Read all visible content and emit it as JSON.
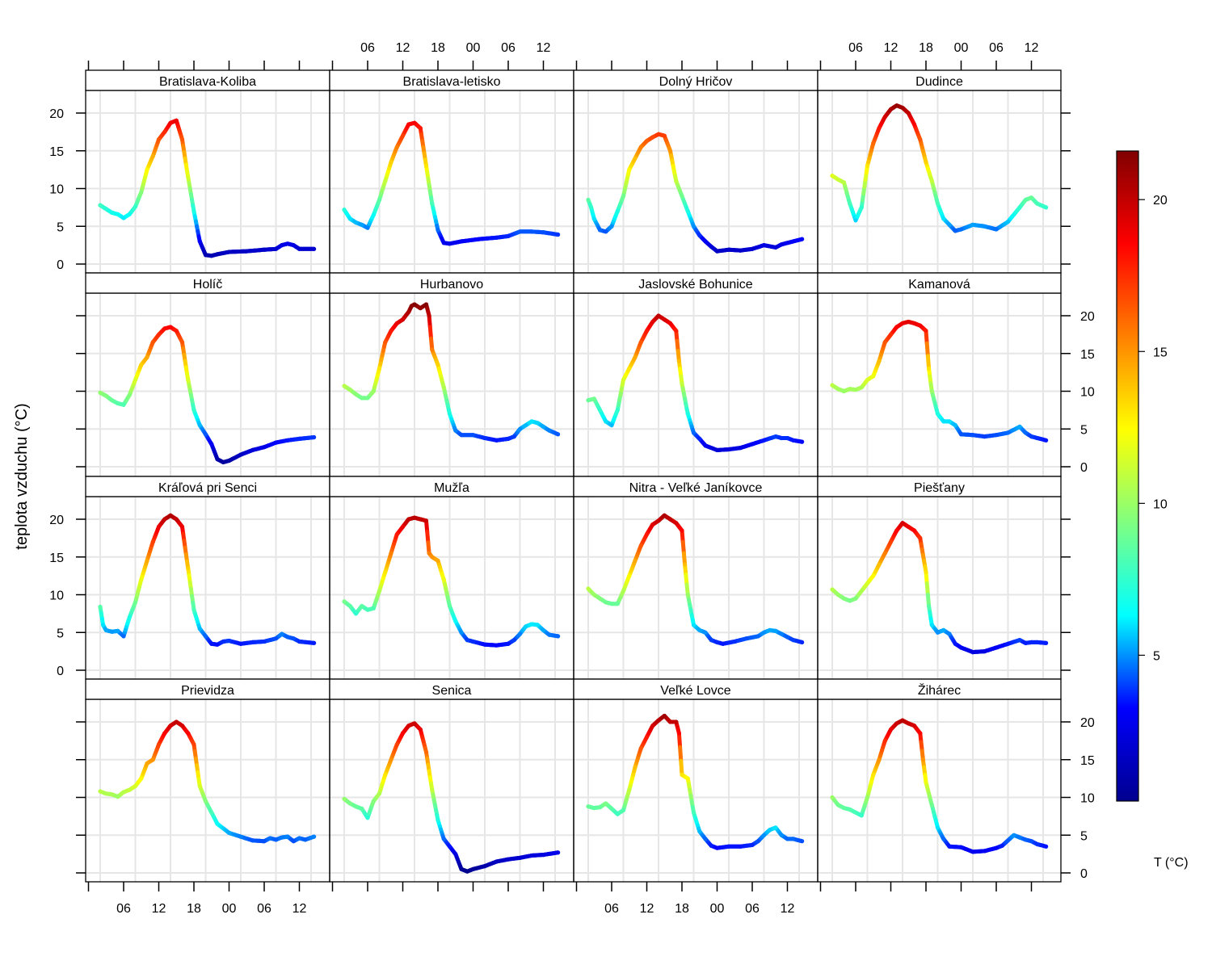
{
  "chart_data": {
    "type": "line",
    "subtype": "faceted line plot colored by value (4x4 panels)",
    "title": "",
    "ylabel": "teplota vzduchu (°C)",
    "xlabel": "",
    "x_unit": "hours from 00:00 of day 1",
    "x_tick_labels": [
      "06",
      "12",
      "18",
      "00",
      "06",
      "12"
    ],
    "x_tick_hours": [
      0,
      6,
      12,
      18,
      24,
      30,
      36
    ],
    "y_ticks": [
      0,
      5,
      10,
      15,
      20
    ],
    "ylim": [
      -1.5,
      23.5
    ],
    "grid": true,
    "layout": {
      "columns": 4,
      "rows": 4
    },
    "colorbar": {
      "title": "T (°C)",
      "ticks": [
        5,
        10,
        15,
        20
      ],
      "range": [
        0.2,
        21.6
      ],
      "colormap": "jet",
      "stops": [
        "#00008F",
        "#0000FF",
        "#00FFFF",
        "#80FF80",
        "#FFFF00",
        "#FF8000",
        "#FF0000",
        "#800000"
      ]
    },
    "panels": [
      {
        "name": "Bratislava-Koliba",
        "x": [
          2,
          3,
          4,
          5,
          6,
          7,
          8,
          9,
          10,
          11,
          12,
          13,
          14,
          15,
          16,
          17,
          18,
          19,
          20,
          21,
          22,
          24,
          27,
          30,
          32,
          33,
          34,
          35,
          36,
          38.5
        ],
        "y": [
          7.8,
          7.3,
          6.8,
          6.6,
          6.1,
          6.6,
          7.6,
          9.5,
          12.5,
          14.3,
          16.5,
          17.5,
          18.7,
          19.0,
          16.5,
          11.5,
          7.0,
          3.0,
          1.2,
          1.1,
          1.3,
          1.6,
          1.7,
          1.9,
          2.0,
          2.5,
          2.7,
          2.5,
          2.0,
          2.0
        ]
      },
      {
        "name": "Bratislava-letisko",
        "x": [
          2,
          3,
          4,
          5,
          6,
          7,
          8,
          9,
          10,
          11,
          12,
          13,
          14,
          15,
          16,
          17,
          18,
          19,
          20,
          22,
          25,
          28,
          30,
          32,
          34,
          36,
          38.5
        ],
        "y": [
          7.2,
          6.0,
          5.5,
          5.2,
          4.8,
          6.5,
          8.5,
          11.0,
          13.5,
          15.5,
          17.0,
          18.5,
          18.7,
          18.0,
          13.0,
          8.0,
          4.5,
          2.8,
          2.7,
          3.0,
          3.3,
          3.5,
          3.7,
          4.3,
          4.3,
          4.2,
          3.9
        ]
      },
      {
        "name": "Dolný Hričov",
        "x": [
          2,
          2.5,
          3,
          4,
          5,
          6,
          7,
          8,
          9,
          10,
          11,
          12,
          13,
          14,
          15,
          16,
          17,
          18,
          19,
          20,
          21,
          22,
          23,
          24,
          26,
          28,
          30,
          32,
          34,
          35,
          36,
          38.5
        ],
        "y": [
          8.5,
          7.5,
          6.0,
          4.5,
          4.3,
          5.0,
          7.0,
          9.0,
          12.5,
          14.0,
          15.5,
          16.3,
          16.8,
          17.2,
          17.0,
          15.0,
          11.0,
          9.0,
          7.0,
          5.0,
          3.8,
          3.0,
          2.3,
          1.7,
          1.9,
          1.8,
          2.0,
          2.5,
          2.2,
          2.6,
          2.8,
          3.3
        ]
      },
      {
        "name": "Dudince",
        "x": [
          2,
          3,
          4,
          5,
          6,
          7,
          8,
          9,
          10,
          11,
          12,
          13,
          14,
          15,
          16,
          17,
          18,
          19,
          20,
          21,
          22,
          23,
          24,
          26,
          28,
          30,
          32,
          34,
          35,
          36,
          37,
          38.5
        ],
        "y": [
          11.7,
          11.2,
          10.8,
          8.0,
          5.8,
          7.5,
          13.0,
          16.0,
          18.0,
          19.5,
          20.5,
          21.0,
          20.7,
          20.0,
          18.5,
          16.5,
          13.5,
          11.0,
          8.0,
          6.0,
          5.2,
          4.4,
          4.6,
          5.2,
          5.0,
          4.6,
          5.6,
          7.5,
          8.5,
          8.8,
          8.0,
          7.5
        ]
      },
      {
        "name": "Holíč",
        "x": [
          2,
          3,
          4,
          5,
          6,
          7,
          8,
          9,
          10,
          11,
          12,
          13,
          14,
          15,
          16,
          17,
          18,
          19,
          20,
          21,
          22,
          23,
          24,
          26,
          28,
          30,
          32,
          34,
          36,
          38.5
        ],
        "y": [
          9.8,
          9.4,
          8.8,
          8.4,
          8.2,
          9.5,
          11.5,
          13.5,
          14.5,
          16.5,
          17.5,
          18.3,
          18.5,
          18.0,
          16.5,
          11.5,
          7.5,
          5.5,
          4.3,
          3.0,
          1.0,
          0.6,
          0.8,
          1.6,
          2.2,
          2.6,
          3.2,
          3.5,
          3.7,
          3.9
        ]
      },
      {
        "name": "Hurbanovo",
        "x": [
          2,
          3,
          4,
          5,
          6,
          7,
          8,
          9,
          10,
          11,
          12,
          13,
          13.5,
          14,
          15,
          16,
          16.5,
          17,
          18,
          19,
          20,
          21,
          22,
          24,
          26,
          28,
          30,
          31,
          32,
          33,
          34,
          35,
          36,
          37,
          38.5
        ],
        "y": [
          10.7,
          10.2,
          9.6,
          9.1,
          9.1,
          10.0,
          13.0,
          16.5,
          18.0,
          19.0,
          19.5,
          20.5,
          21.3,
          21.5,
          21.0,
          21.5,
          20.0,
          15.5,
          13.5,
          10.5,
          7.0,
          4.8,
          4.2,
          4.2,
          3.8,
          3.5,
          3.7,
          4.0,
          5.0,
          5.5,
          6.0,
          5.8,
          5.3,
          4.8,
          4.3
        ]
      },
      {
        "name": "Jaslovské Bohunice",
        "x": [
          2,
          3,
          4,
          5,
          6,
          7,
          8,
          9,
          10,
          11,
          12,
          13,
          14,
          15,
          16,
          17,
          17.5,
          18,
          19,
          20,
          21,
          22,
          24,
          26,
          28,
          30,
          32,
          34,
          35,
          36,
          37,
          38.5
        ],
        "y": [
          8.8,
          9.0,
          7.5,
          6.0,
          5.5,
          7.5,
          11.5,
          13.0,
          14.5,
          16.5,
          18.0,
          19.2,
          20.0,
          19.5,
          19.0,
          18.0,
          14.0,
          11.0,
          7.0,
          4.5,
          3.7,
          2.8,
          2.2,
          2.3,
          2.5,
          3.0,
          3.5,
          4.0,
          3.8,
          3.8,
          3.5,
          3.3
        ]
      },
      {
        "name": "Kamanová",
        "x": [
          2,
          3,
          4,
          5,
          6,
          7,
          8,
          9,
          10,
          11,
          12,
          13,
          14,
          15,
          16,
          17,
          18,
          18.5,
          19,
          20,
          21,
          22,
          23,
          24,
          26,
          28,
          30,
          32,
          34,
          35,
          36,
          37,
          38.5
        ],
        "y": [
          10.8,
          10.3,
          10.0,
          10.3,
          10.2,
          10.5,
          11.5,
          12.0,
          14.0,
          16.5,
          17.5,
          18.5,
          19.0,
          19.2,
          19.0,
          18.7,
          18.0,
          13.0,
          10.0,
          7.0,
          6.0,
          6.0,
          5.5,
          4.3,
          4.2,
          4.0,
          4.2,
          4.5,
          5.3,
          4.5,
          4.0,
          3.8,
          3.5
        ]
      },
      {
        "name": "Kráľová pri Senci",
        "x": [
          2,
          2.5,
          3,
          4,
          5,
          6,
          7,
          8,
          9,
          10,
          11,
          12,
          13,
          14,
          15,
          16,
          17,
          18,
          19,
          20,
          21,
          22,
          23,
          24,
          26,
          28,
          30,
          32,
          33,
          34,
          35,
          36,
          38.5
        ],
        "y": [
          8.4,
          6.0,
          5.3,
          5.1,
          5.2,
          4.5,
          7.0,
          9.0,
          12.0,
          14.5,
          17.0,
          19.0,
          20.0,
          20.5,
          20.0,
          19.0,
          13.5,
          8.0,
          5.5,
          4.5,
          3.5,
          3.4,
          3.8,
          3.9,
          3.5,
          3.7,
          3.8,
          4.2,
          4.8,
          4.4,
          4.2,
          3.8,
          3.6
        ]
      },
      {
        "name": "Mužľa",
        "x": [
          2,
          3,
          4,
          5,
          6,
          7,
          8,
          9,
          10,
          11,
          12,
          13,
          14,
          15,
          16,
          16.5,
          17,
          18,
          19,
          20,
          21,
          22,
          23,
          24,
          26,
          28,
          30,
          31,
          32,
          33,
          34,
          35,
          36,
          37,
          38.5
        ],
        "y": [
          9.1,
          8.5,
          7.5,
          8.5,
          8.0,
          8.2,
          10.5,
          13.0,
          15.5,
          18.0,
          19.0,
          20.0,
          20.2,
          20.0,
          19.8,
          15.5,
          15.0,
          14.5,
          12.0,
          8.5,
          6.5,
          5.0,
          4.0,
          3.8,
          3.4,
          3.3,
          3.5,
          4.0,
          4.8,
          5.8,
          6.1,
          6.0,
          5.3,
          4.7,
          4.5
        ]
      },
      {
        "name": "Nitra - Veľké Janíkovce",
        "x": [
          2,
          3,
          4,
          5,
          6,
          7,
          8,
          9,
          10,
          11,
          12,
          13,
          14,
          15,
          16,
          17,
          18,
          18.5,
          19,
          20,
          21,
          22,
          23,
          24,
          25,
          27,
          29,
          31,
          32,
          33,
          34,
          35,
          36,
          37,
          38.5
        ],
        "y": [
          10.8,
          10.0,
          9.5,
          9.0,
          8.8,
          8.8,
          10.5,
          12.5,
          14.5,
          16.5,
          18.0,
          19.3,
          19.8,
          20.5,
          20.0,
          19.5,
          18.5,
          14.0,
          10.0,
          6.0,
          5.3,
          5.0,
          4.0,
          3.7,
          3.5,
          3.8,
          4.2,
          4.5,
          5.0,
          5.3,
          5.2,
          4.8,
          4.4,
          4.0,
          3.7
        ]
      },
      {
        "name": "Piešťany",
        "x": [
          2,
          3,
          4,
          5,
          6,
          7,
          8,
          9,
          10,
          11,
          12,
          13,
          14,
          15,
          16,
          17,
          18,
          18.5,
          19,
          20,
          21,
          22,
          23,
          24,
          26,
          28,
          30,
          32,
          34,
          35,
          36,
          37,
          38.5
        ],
        "y": [
          10.7,
          10.0,
          9.5,
          9.2,
          9.5,
          10.5,
          11.5,
          12.5,
          14.0,
          15.5,
          17.0,
          18.5,
          19.5,
          19.0,
          18.5,
          17.5,
          13.0,
          8.5,
          6.0,
          5.0,
          5.3,
          4.8,
          3.5,
          3.0,
          2.4,
          2.5,
          3.0,
          3.5,
          4.0,
          3.6,
          3.7,
          3.7,
          3.6
        ]
      },
      {
        "name": "Prievidza",
        "x": [
          2,
          3,
          4,
          5,
          6,
          7,
          8,
          9,
          10,
          11,
          12,
          13,
          14,
          15,
          16,
          17,
          18,
          19,
          20,
          21,
          22,
          24,
          26,
          28,
          30,
          31,
          32,
          33,
          34,
          35,
          36,
          37,
          38.5
        ],
        "y": [
          10.8,
          10.5,
          10.4,
          10.1,
          10.7,
          11.0,
          11.5,
          12.5,
          14.5,
          15.0,
          17.0,
          18.5,
          19.5,
          20.0,
          19.5,
          18.5,
          17.0,
          11.5,
          9.5,
          8.0,
          6.5,
          5.3,
          4.8,
          4.3,
          4.2,
          4.6,
          4.4,
          4.7,
          4.8,
          4.2,
          4.6,
          4.4,
          4.8
        ]
      },
      {
        "name": "Senica",
        "x": [
          2,
          3,
          4,
          5,
          6,
          7,
          8,
          9,
          10,
          11,
          12,
          13,
          14,
          15,
          16,
          17,
          18,
          19,
          20,
          21,
          22,
          23,
          24,
          26,
          28,
          30,
          32,
          34,
          36,
          38.5
        ],
        "y": [
          9.8,
          9.2,
          8.8,
          8.5,
          7.3,
          9.5,
          10.5,
          13.0,
          15.0,
          17.0,
          18.5,
          19.5,
          19.8,
          19.0,
          16.0,
          11.0,
          7.0,
          4.5,
          3.5,
          2.5,
          0.5,
          0.2,
          0.5,
          0.9,
          1.5,
          1.8,
          2.0,
          2.3,
          2.4,
          2.7
        ]
      },
      {
        "name": "Veľké Lovce",
        "x": [
          2,
          3,
          4,
          5,
          6,
          7,
          8,
          9,
          10,
          11,
          12,
          13,
          14,
          15,
          16,
          17,
          17.5,
          18,
          19,
          20,
          21,
          22,
          23,
          24,
          26,
          28,
          30,
          31,
          32,
          33,
          34,
          35,
          36,
          37,
          38.5
        ],
        "y": [
          8.8,
          8.6,
          8.7,
          9.2,
          8.5,
          7.8,
          8.3,
          11.0,
          14.0,
          16.5,
          18.0,
          19.5,
          20.2,
          20.8,
          20.0,
          20.0,
          18.5,
          13.0,
          12.5,
          8.0,
          5.5,
          4.5,
          3.6,
          3.3,
          3.5,
          3.5,
          3.7,
          4.2,
          5.0,
          5.7,
          6.0,
          5.0,
          4.5,
          4.5,
          4.2
        ]
      },
      {
        "name": "Žihárec",
        "x": [
          2,
          3,
          4,
          5,
          6,
          7,
          8,
          9,
          10,
          11,
          12,
          13,
          14,
          15,
          16,
          17,
          17.5,
          18,
          19,
          20,
          21,
          22,
          24,
          26,
          28,
          30,
          31,
          32,
          33,
          34,
          35,
          36,
          37,
          38.5
        ],
        "y": [
          10.0,
          9.0,
          8.6,
          8.4,
          8.0,
          7.6,
          10.0,
          13.0,
          15.0,
          17.5,
          19.0,
          19.8,
          20.2,
          19.8,
          19.5,
          18.5,
          15.0,
          12.0,
          9.0,
          6.0,
          4.5,
          3.5,
          3.4,
          2.8,
          2.9,
          3.3,
          3.6,
          4.3,
          5.0,
          4.7,
          4.4,
          4.2,
          3.8,
          3.5
        ]
      }
    ]
  }
}
